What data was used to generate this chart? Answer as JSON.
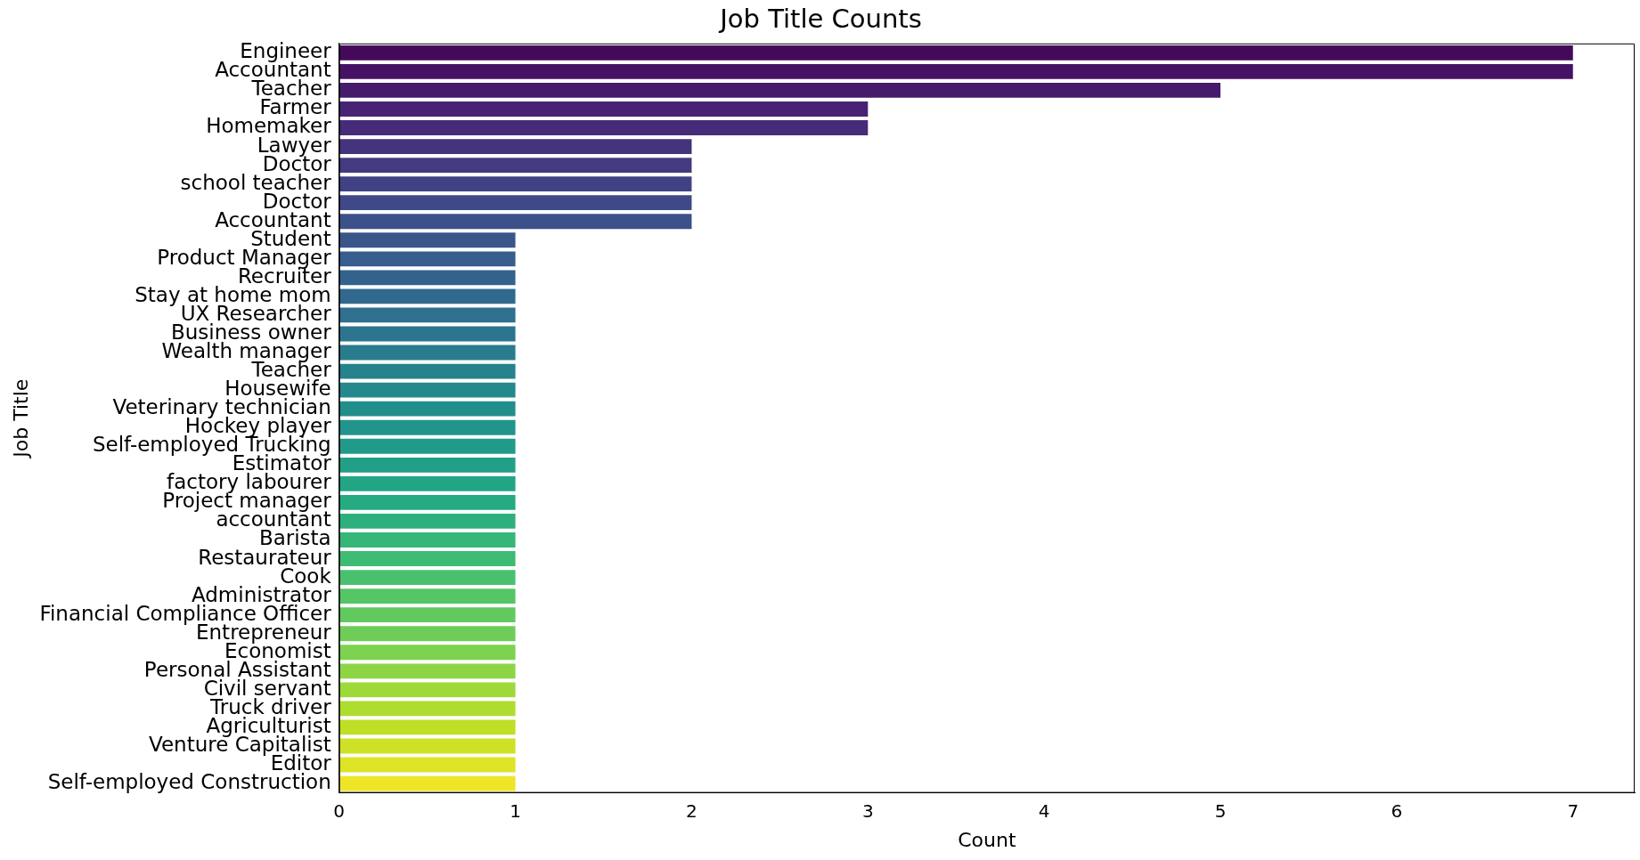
{
  "chart_data": {
    "type": "bar",
    "orientation": "horizontal",
    "title": "Job Title Counts",
    "xlabel": "Count",
    "ylabel": "Job Title",
    "categories": [
      "Engineer",
      "Accountant",
      "Teacher",
      "Farmer",
      "Homemaker",
      "Lawyer",
      "Doctor",
      "school teacher",
      "Doctor",
      "Accountant",
      "Student",
      "Product Manager",
      "Recruiter",
      "Stay at home mom",
      "UX Researcher",
      "Business owner",
      "Wealth manager",
      "Teacher",
      "Housewife",
      "Veterinary technician",
      "Hockey player",
      "Self-employed Trucking",
      "Estimator",
      "factory labourer",
      "Project manager",
      "accountant",
      "Barista",
      "Restaurateur",
      "Cook",
      "Administrator",
      "Financial Compliance Officer",
      "Entrepreneur",
      "Economist",
      "Personal Assistant",
      "Civil servant",
      "Truck driver",
      "Agriculturist",
      "Venture Capitalist",
      "Editor",
      "Self-employed Construction"
    ],
    "values": [
      7,
      7,
      5,
      3,
      3,
      2,
      2,
      2,
      2,
      2,
      1,
      1,
      1,
      1,
      1,
      1,
      1,
      1,
      1,
      1,
      1,
      1,
      1,
      1,
      1,
      1,
      1,
      1,
      1,
      1,
      1,
      1,
      1,
      1,
      1,
      1,
      1,
      1,
      1,
      1
    ],
    "colors": [
      "#45095c",
      "#461264",
      "#471b6c",
      "#482373",
      "#462b79",
      "#45337d",
      "#433b82",
      "#414286",
      "#3f4988",
      "#3c508a",
      "#39568b",
      "#365d8d",
      "#33638d",
      "#30698d",
      "#2e708e",
      "#2b768e",
      "#297c8e",
      "#26828d",
      "#24888d",
      "#228e8c",
      "#21948b",
      "#219a89",
      "#229f87",
      "#22a585",
      "#25aa82",
      "#2eb07d",
      "#36b678",
      "#3ebb73",
      "#48c06e",
      "#55c566",
      "#62c95f",
      "#6fcd57",
      "#7dd24f",
      "#8dd545",
      "#9ed93a",
      "#aedc2f",
      "#bedf26",
      "#cee126",
      "#dee326",
      "#eee526"
    ],
    "xlim": [
      0,
      7.35
    ],
    "xticks": [
      0,
      1,
      2,
      3,
      4,
      5,
      6,
      7
    ],
    "grid": false,
    "legend": false
  }
}
